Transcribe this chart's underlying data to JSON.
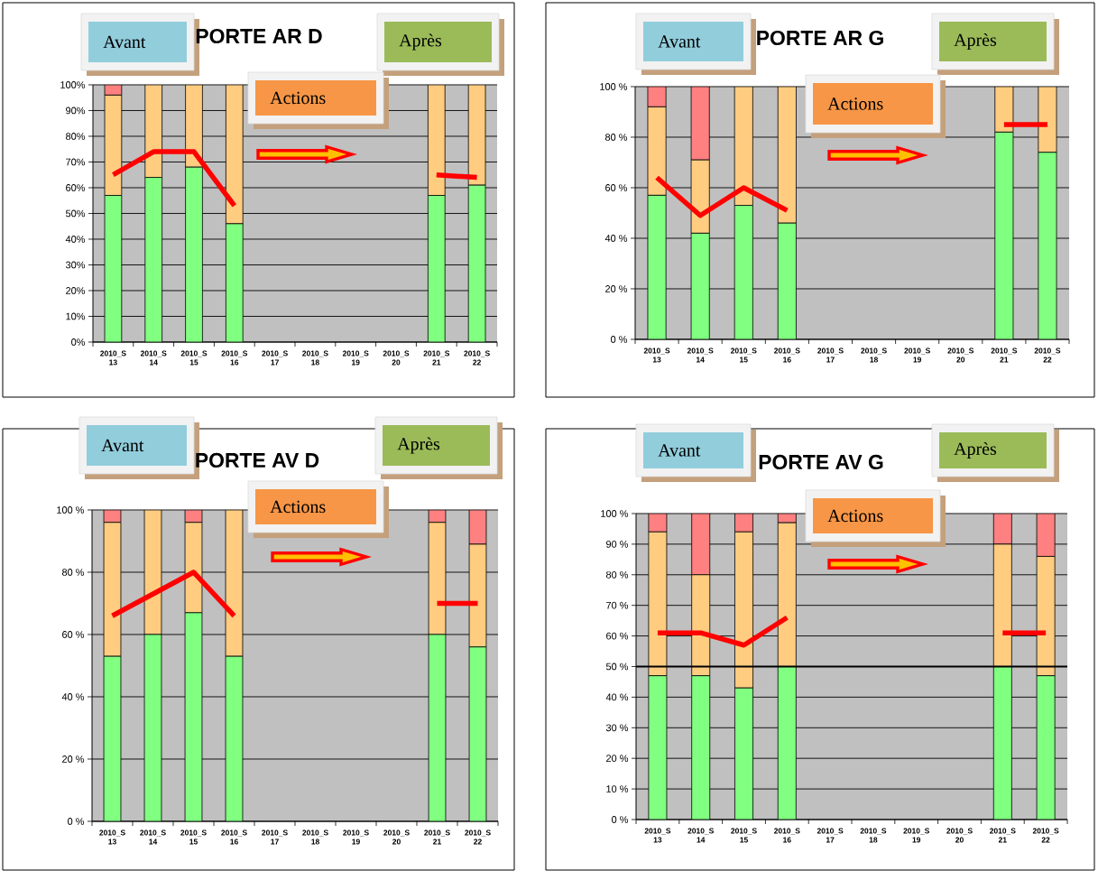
{
  "chart_data": [
    {
      "type": "bar",
      "title": "PORTE AR D",
      "categories": [
        "2010_S 13",
        "2010_S 14",
        "2010_S 15",
        "2010_S 16",
        "2010_S 17",
        "2010_S 18",
        "2010_S 19",
        "2010_S 20",
        "2010_S 21",
        "2010_S 22"
      ],
      "stacked": true,
      "series": [
        {
          "color": "#80ff80",
          "values": [
            57,
            64,
            68,
            46,
            null,
            null,
            null,
            null,
            57,
            61
          ]
        },
        {
          "color": "#ffcc80",
          "values": [
            39,
            36,
            32,
            54,
            null,
            null,
            null,
            null,
            43,
            39
          ]
        },
        {
          "color": "#ff8080",
          "values": [
            4,
            null,
            null,
            null,
            null,
            null,
            null,
            null,
            null,
            null
          ]
        },
        {
          "type": "line",
          "color": "#ff0000",
          "values": [
            65,
            74,
            74,
            53,
            null,
            null,
            null,
            null,
            65,
            64
          ]
        }
      ],
      "ylim": [
        0,
        100
      ],
      "yticks": [
        {
          "value": 0,
          "label": "0%"
        },
        {
          "value": 10,
          "label": "10%"
        },
        {
          "value": 20,
          "label": "20%"
        },
        {
          "value": 30,
          "label": "30%"
        },
        {
          "value": 40,
          "label": "40%"
        },
        {
          "value": 50,
          "label": "50%"
        },
        {
          "value": 60,
          "label": "60%"
        },
        {
          "value": 70,
          "label": "70%"
        },
        {
          "value": 80,
          "label": "80%"
        },
        {
          "value": 90,
          "label": "90%"
        },
        {
          "value": 100,
          "label": "100%"
        }
      ],
      "grid": "y",
      "annotations": [
        "Avant",
        "Après",
        "Actions"
      ]
    },
    {
      "type": "bar",
      "title": "PORTE AR G",
      "categories": [
        "2010_S 13",
        "2010_S 14",
        "2010_S 15",
        "2010_S 16",
        "2010_S 17",
        "2010_S 18",
        "2010_S 19",
        "2010_S 20",
        "2010_S 21",
        "2010_S 22"
      ],
      "stacked": true,
      "series": [
        {
          "color": "#80ff80",
          "values": [
            57,
            42,
            53,
            46,
            null,
            null,
            null,
            null,
            82,
            74
          ]
        },
        {
          "color": "#ffcc80",
          "values": [
            35,
            29,
            47,
            54,
            null,
            null,
            null,
            null,
            18,
            26
          ]
        },
        {
          "color": "#ff8080",
          "values": [
            8,
            29,
            null,
            null,
            null,
            null,
            null,
            null,
            null,
            null
          ]
        },
        {
          "type": "line",
          "color": "#ff0000",
          "values": [
            64,
            49,
            60,
            51,
            null,
            null,
            null,
            null,
            85,
            85
          ]
        }
      ],
      "ylim": [
        0,
        100
      ],
      "yticks": [
        {
          "value": 0,
          "label": "0 %"
        },
        {
          "value": 20,
          "label": "20 %"
        },
        {
          "value": 40,
          "label": "40 %"
        },
        {
          "value": 60,
          "label": "60 %"
        },
        {
          "value": 80,
          "label": "80 %"
        },
        {
          "value": 100,
          "label": "100 %"
        }
      ],
      "grid": "y",
      "annotations": [
        "Avant",
        "Après",
        "Actions"
      ]
    },
    {
      "type": "bar",
      "title": "PORTE AV D",
      "categories": [
        "2010_S 13",
        "2010_S 14",
        "2010_S 15",
        "2010_S 16",
        "2010_S 17",
        "2010_S 18",
        "2010_S 19",
        "2010_S 20",
        "2010_S 21",
        "2010_S 22"
      ],
      "stacked": true,
      "series": [
        {
          "color": "#80ff80",
          "values": [
            53,
            60,
            67,
            53,
            null,
            null,
            null,
            null,
            60,
            56
          ]
        },
        {
          "color": "#ffcc80",
          "values": [
            43,
            40,
            29,
            47,
            null,
            null,
            null,
            null,
            36,
            33
          ]
        },
        {
          "color": "#ff8080",
          "values": [
            4,
            null,
            4,
            null,
            null,
            null,
            null,
            null,
            4,
            11
          ]
        },
        {
          "type": "line",
          "color": "#ff0000",
          "values": [
            66,
            73,
            80,
            66,
            null,
            null,
            null,
            null,
            70,
            70
          ]
        }
      ],
      "ylim": [
        0,
        100
      ],
      "yticks": [
        {
          "value": 0,
          "label": "0 %"
        },
        {
          "value": 20,
          "label": "20 %"
        },
        {
          "value": 40,
          "label": "40 %"
        },
        {
          "value": 60,
          "label": "60 %"
        },
        {
          "value": 80,
          "label": "80 %"
        },
        {
          "value": 100,
          "label": "100 %"
        }
      ],
      "grid": "y",
      "annotations": [
        "Avant",
        "Après",
        "Actions"
      ]
    },
    {
      "type": "bar",
      "title": "PORTE AV G",
      "categories": [
        "2010_S 13",
        "2010_S 14",
        "2010_S 15",
        "2010_S 16",
        "2010_S 17",
        "2010_S 18",
        "2010_S 19",
        "2010_S 20",
        "2010_S 21",
        "2010_S 22"
      ],
      "stacked": true,
      "series": [
        {
          "color": "#80ff80",
          "values": [
            47,
            47,
            43,
            50,
            null,
            null,
            null,
            null,
            50,
            47
          ]
        },
        {
          "color": "#ffcc80",
          "values": [
            47,
            33,
            51,
            47,
            null,
            null,
            null,
            null,
            40,
            39
          ]
        },
        {
          "color": "#ff8080",
          "values": [
            6,
            20,
            6,
            3,
            null,
            null,
            null,
            null,
            10,
            14
          ]
        },
        {
          "type": "line",
          "color": "#ff0000",
          "values": [
            61,
            61,
            57,
            66,
            null,
            null,
            null,
            null,
            61,
            61
          ]
        }
      ],
      "ylim": [
        0,
        100
      ],
      "yticks": [
        {
          "value": 0,
          "label": "0 %"
        },
        {
          "value": 10,
          "label": "10 %"
        },
        {
          "value": 20,
          "label": "20 %"
        },
        {
          "value": 30,
          "label": "30 %"
        },
        {
          "value": 40,
          "label": "40 %"
        },
        {
          "value": 50,
          "label": "50 %"
        },
        {
          "value": 60,
          "label": "60 %"
        },
        {
          "value": 70,
          "label": "70 %"
        },
        {
          "value": 80,
          "label": "80 %"
        },
        {
          "value": 90,
          "label": "90 %"
        },
        {
          "value": 100,
          "label": "100 %"
        }
      ],
      "grid": "y",
      "ref_lines": [
        {
          "axis": "y",
          "value": 50,
          "color": "#000000"
        }
      ],
      "annotations": [
        "Avant",
        "Après",
        "Actions"
      ]
    }
  ]
}
